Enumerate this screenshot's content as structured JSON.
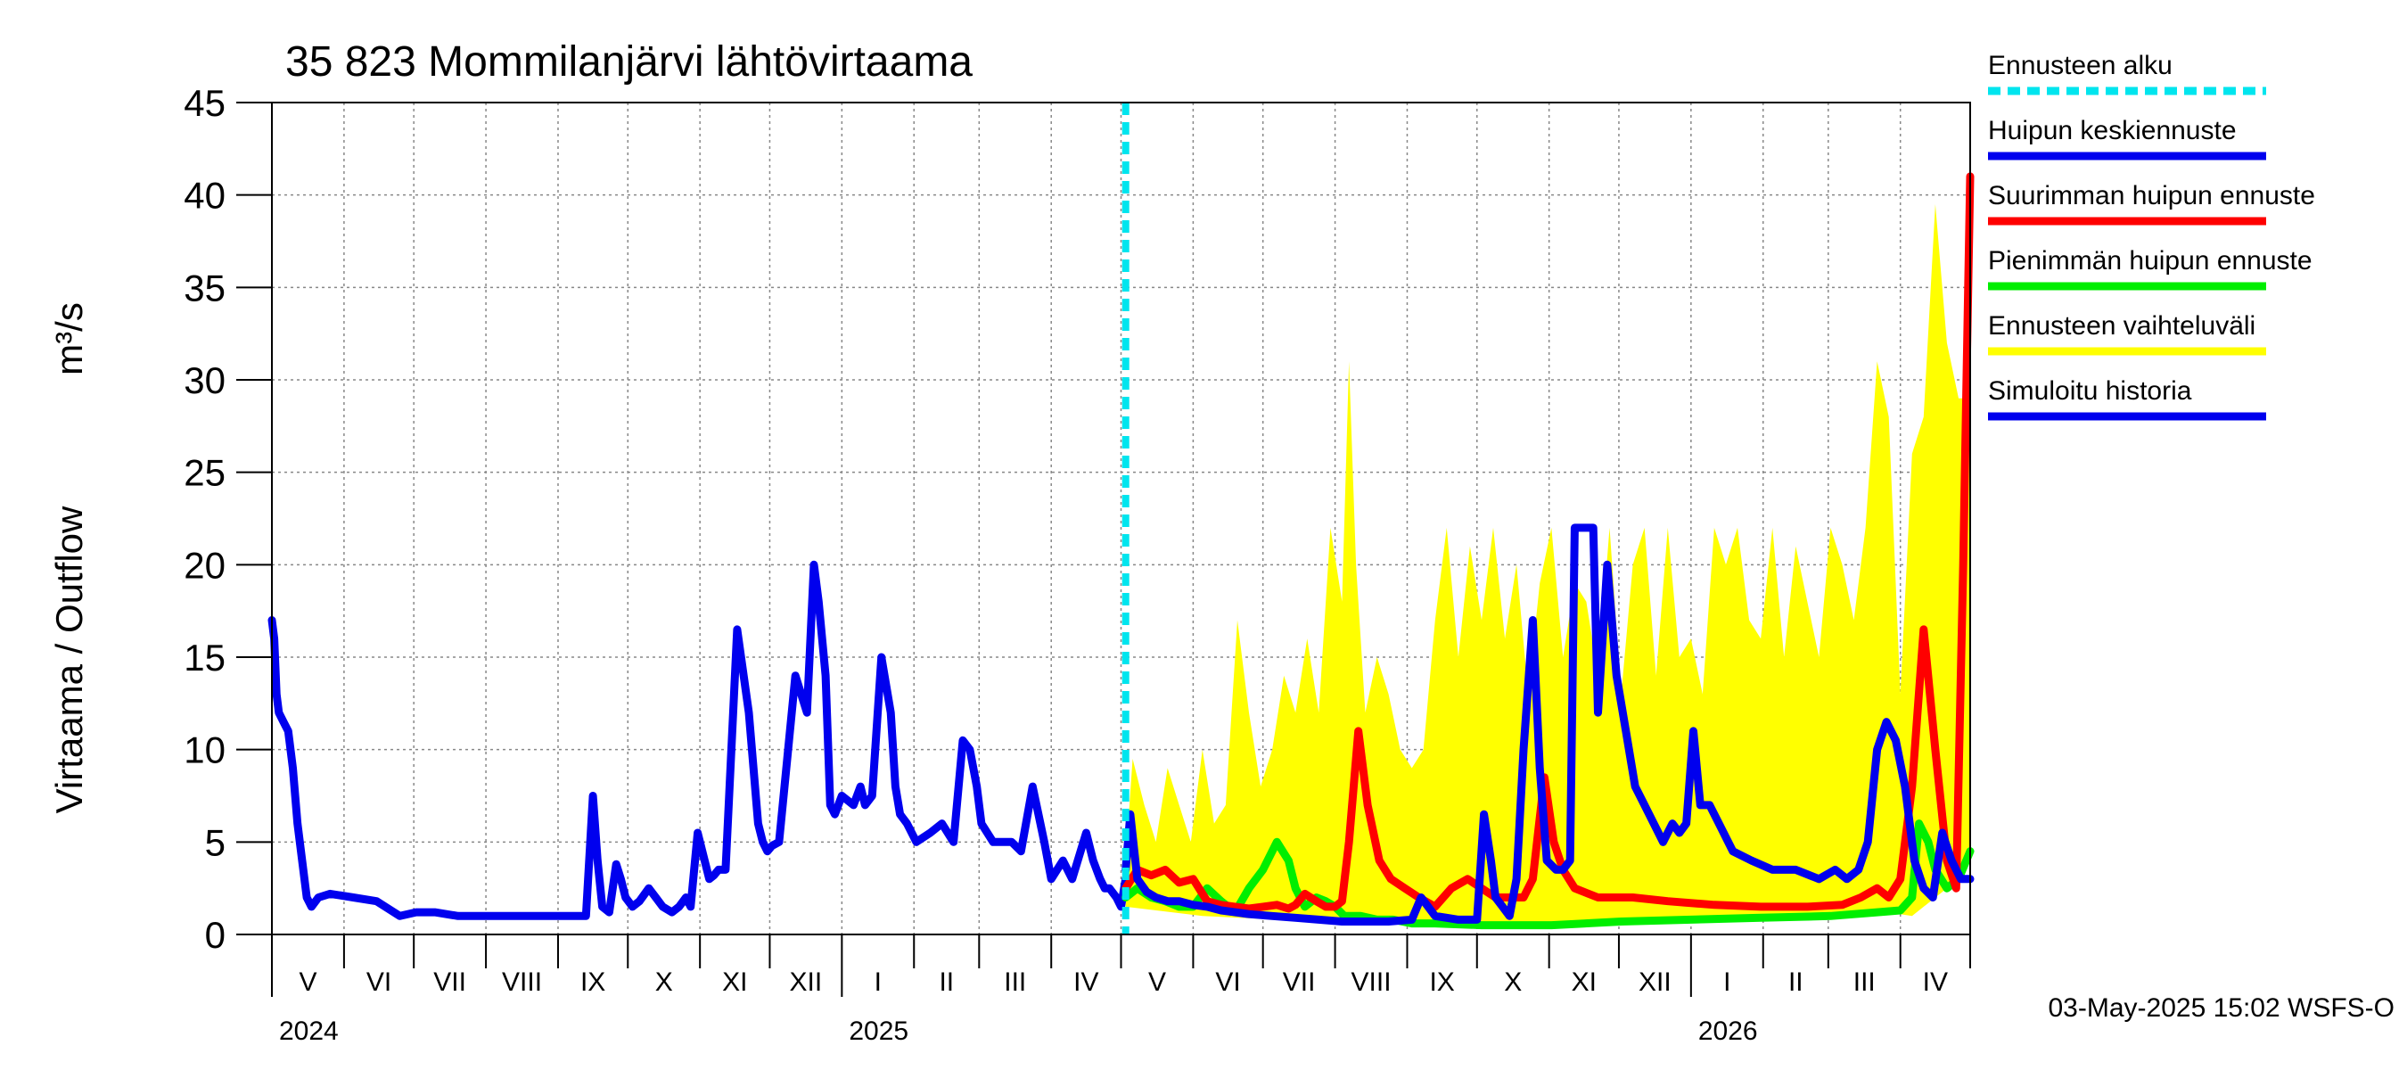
{
  "chart_data": {
    "type": "line",
    "title": "35 823 Mommilanjärvi lähtövirtaama",
    "ylabel_fi": "Virtaama / Outflow",
    "ylabel_unit": "m³/s",
    "ylim": [
      0,
      45
    ],
    "yticks": [
      0,
      5,
      10,
      15,
      20,
      25,
      30,
      35,
      40,
      45
    ],
    "ytick_labels": [
      "0",
      "5",
      "10",
      "15",
      "20",
      "25",
      "30",
      "35",
      "40",
      "45"
    ],
    "x_range_days": [
      0,
      730
    ],
    "months": [
      {
        "label": "V",
        "start": 0,
        "end": 31
      },
      {
        "label": "VI",
        "start": 31,
        "end": 61
      },
      {
        "label": "VII",
        "start": 61,
        "end": 92
      },
      {
        "label": "VIII",
        "start": 92,
        "end": 123
      },
      {
        "label": "IX",
        "start": 123,
        "end": 153
      },
      {
        "label": "X",
        "start": 153,
        "end": 184
      },
      {
        "label": "XI",
        "start": 184,
        "end": 214
      },
      {
        "label": "XII",
        "start": 214,
        "end": 245
      },
      {
        "label": "I",
        "start": 245,
        "end": 276
      },
      {
        "label": "II",
        "start": 276,
        "end": 304
      },
      {
        "label": "III",
        "start": 304,
        "end": 335
      },
      {
        "label": "IV",
        "start": 335,
        "end": 365
      },
      {
        "label": "V",
        "start": 365,
        "end": 396
      },
      {
        "label": "VI",
        "start": 396,
        "end": 426
      },
      {
        "label": "VII",
        "start": 426,
        "end": 457
      },
      {
        "label": "VIII",
        "start": 457,
        "end": 488
      },
      {
        "label": "IX",
        "start": 488,
        "end": 518
      },
      {
        "label": "X",
        "start": 518,
        "end": 549
      },
      {
        "label": "XI",
        "start": 549,
        "end": 579
      },
      {
        "label": "XII",
        "start": 579,
        "end": 610
      },
      {
        "label": "I",
        "start": 610,
        "end": 641
      },
      {
        "label": "II",
        "start": 641,
        "end": 669
      },
      {
        "label": "III",
        "start": 669,
        "end": 700
      },
      {
        "label": "IV",
        "start": 700,
        "end": 730
      }
    ],
    "years": [
      {
        "label": "2024",
        "day": 0
      },
      {
        "label": "2025",
        "day": 245
      },
      {
        "label": "2026",
        "day": 610
      }
    ],
    "forecast_start_day": 367,
    "legend": [
      {
        "label": "Ennusteen alku",
        "color": "#00e5ee",
        "style": "dashed"
      },
      {
        "label": "Huipun keskiennuste",
        "color": "#0000ee",
        "style": "solid"
      },
      {
        "label": "Suurimman huipun ennuste",
        "color": "#ff0000",
        "style": "solid"
      },
      {
        "label": "Pienimmän huipun ennuste",
        "color": "#00ee00",
        "style": "solid"
      },
      {
        "label": "Ennusteen vaihteluväli",
        "color": "#ffff00",
        "style": "solid"
      },
      {
        "label": "Simuloitu historia",
        "color": "#0000ee",
        "style": "solid"
      }
    ],
    "footer": "03-May-2025 15:02 WSFS-O",
    "series": [
      {
        "name": "Simuloitu historia",
        "color": "#0000ee",
        "x": [
          0,
          1,
          2,
          3,
          5,
          7,
          9,
          11,
          13,
          15,
          17,
          20,
          25,
          35,
          45,
          55,
          62,
          70,
          80,
          95,
          110,
          125,
          135,
          138,
          140,
          142,
          145,
          148,
          150,
          152,
          155,
          158,
          162,
          165,
          168,
          172,
          175,
          178,
          180,
          183,
          186,
          188,
          190,
          192,
          195,
          200,
          205,
          207,
          209,
          211,
          213,
          215,
          218,
          225,
          230,
          233,
          235,
          238,
          240,
          242,
          245,
          250,
          253,
          255,
          258,
          262,
          266,
          268,
          270,
          273,
          277,
          283,
          288,
          293,
          297,
          300,
          303,
          305,
          310,
          318,
          322,
          327,
          332,
          335,
          340,
          344,
          350,
          353,
          356,
          358,
          360,
          363,
          365,
          367
        ],
        "y": [
          17,
          16,
          13,
          12,
          11.5,
          11,
          9,
          6,
          4,
          2,
          1.5,
          2,
          2.2,
          2,
          1.8,
          1,
          1.2,
          1.2,
          1,
          1,
          1,
          1,
          1,
          7.5,
          4,
          1.5,
          1.2,
          3.8,
          3,
          2,
          1.5,
          1.8,
          2.5,
          2,
          1.5,
          1.2,
          1.5,
          2,
          1.5,
          5.5,
          4,
          3,
          3.2,
          3.5,
          3.5,
          16.5,
          12,
          9,
          6,
          5,
          4.5,
          4.8,
          5,
          14,
          12,
          20,
          18,
          14,
          7,
          6.5,
          7.5,
          7,
          8,
          7,
          7.5,
          15,
          12,
          8,
          6.5,
          6,
          5,
          5.5,
          6,
          5,
          10.5,
          10,
          8,
          6,
          5,
          5,
          4.5,
          8,
          5,
          3,
          4,
          3,
          5.5,
          4,
          3,
          2.5,
          2.5,
          2,
          1.5,
          3
        ]
      },
      {
        "name": "Ennusteen vaihteluväli (yläraja)",
        "color": "#ffff00",
        "x": [
          367,
          370,
          375,
          380,
          385,
          390,
          395,
          400,
          405,
          410,
          415,
          420,
          425,
          430,
          435,
          440,
          445,
          450,
          455,
          460,
          463,
          466,
          470,
          475,
          480,
          485,
          490,
          495,
          500,
          505,
          510,
          515,
          520,
          525,
          530,
          535,
          540,
          545,
          550,
          555,
          560,
          565,
          570,
          575,
          580,
          585,
          590,
          595,
          600,
          605,
          610,
          615,
          620,
          625,
          630,
          635,
          640,
          645,
          650,
          655,
          660,
          665,
          670,
          675,
          680,
          685,
          690,
          695,
          700,
          705,
          710,
          715,
          720,
          725,
          730
        ],
        "y": [
          4,
          9.5,
          7,
          5,
          9,
          7,
          5,
          10,
          6,
          7,
          17,
          12,
          8,
          10,
          14,
          12,
          16,
          12,
          22,
          18,
          31,
          20,
          12,
          15,
          13,
          10,
          9,
          10,
          17,
          22,
          15,
          21,
          17,
          22,
          16,
          20,
          13,
          19,
          22,
          15,
          19,
          18,
          14,
          22,
          13,
          20,
          22,
          14,
          22,
          15,
          16,
          13,
          22,
          20,
          22,
          17,
          16,
          22,
          15,
          21,
          18,
          15,
          22,
          20,
          17,
          22,
          31,
          28,
          13,
          26,
          28,
          39.5,
          32,
          29,
          29
        ]
      },
      {
        "name": "Ennusteen vaihteluväli (alaraja)",
        "color": "#ffff00",
        "x": [
          367,
          400,
          450,
          500,
          550,
          600,
          650,
          700,
          705,
          710,
          715,
          720,
          725,
          730
        ],
        "y": [
          1.5,
          1,
          0.7,
          0.5,
          0.5,
          0.6,
          0.9,
          1.1,
          1,
          1.5,
          2,
          2.5,
          3,
          4.5
        ]
      },
      {
        "name": "Suurimman huipun ennuste",
        "color": "#ff0000",
        "x": [
          367,
          372,
          378,
          384,
          390,
          396,
          402,
          408,
          414,
          420,
          426,
          432,
          437,
          440,
          444,
          449,
          453,
          457,
          460,
          463,
          467,
          471,
          476,
          481,
          487,
          493,
          500,
          507,
          514,
          520,
          526,
          532,
          538,
          542,
          547,
          551,
          555,
          560,
          570,
          585,
          600,
          620,
          640,
          660,
          675,
          683,
          690,
          695,
          700,
          705,
          710,
          715,
          720,
          724,
          727,
          730
        ],
        "y": [
          2.5,
          3.5,
          3.2,
          3.5,
          2.8,
          3,
          1.8,
          1.6,
          1.5,
          1.4,
          1.5,
          1.6,
          1.4,
          1.6,
          2.2,
          1.8,
          1.5,
          1.5,
          1.8,
          5,
          11,
          7,
          4,
          3,
          2.5,
          2,
          1.5,
          2.5,
          3,
          2.5,
          2,
          2,
          2,
          3,
          8.5,
          5,
          3.5,
          2.5,
          2,
          2,
          1.8,
          1.6,
          1.5,
          1.5,
          1.6,
          2,
          2.5,
          2,
          3,
          8,
          16.5,
          10,
          4,
          2.5,
          20,
          41
        ]
      },
      {
        "name": "Pienimmän huipun ennuste",
        "color": "#00ee00",
        "x": [
          367,
          372,
          378,
          384,
          390,
          396,
          402,
          408,
          414,
          420,
          426,
          432,
          437,
          440,
          444,
          449,
          453,
          457,
          461,
          468,
          475,
          482,
          490,
          500,
          520,
          550,
          580,
          610,
          640,
          670,
          690,
          700,
          705,
          708,
          712,
          715,
          720,
          725,
          730
        ],
        "y": [
          2,
          2.5,
          2,
          1.8,
          1.5,
          1.5,
          2.5,
          1.8,
          1.2,
          2.5,
          3.5,
          5,
          4,
          2.5,
          1.5,
          2,
          1.8,
          1.5,
          1,
          1,
          0.8,
          0.8,
          0.6,
          0.6,
          0.5,
          0.5,
          0.7,
          0.8,
          0.9,
          1,
          1.2,
          1.3,
          2,
          6,
          5,
          3.5,
          2.5,
          3,
          4.5
        ]
      },
      {
        "name": "Huipun keskiennuste",
        "color": "#0000ee",
        "x": [
          367,
          369,
          372,
          376,
          380,
          385,
          390,
          396,
          402,
          408,
          414,
          420,
          430,
          440,
          450,
          460,
          470,
          480,
          490,
          494,
          497,
          500,
          505,
          510,
          515,
          518,
          521,
          524,
          526,
          529,
          532,
          535,
          538,
          542,
          545,
          548,
          552,
          555,
          558,
          560,
          563,
          565,
          568,
          570,
          574,
          578,
          582,
          586,
          590,
          594,
          598,
          602,
          605,
          608,
          611,
          614,
          618,
          622,
          628,
          636,
          645,
          655,
          665,
          672,
          677,
          682,
          686,
          690,
          694,
          698,
          702,
          706,
          710,
          714,
          718,
          722,
          726,
          730
        ],
        "y": [
          3.5,
          6.5,
          3,
          2.3,
          2,
          1.8,
          1.8,
          1.6,
          1.5,
          1.3,
          1.2,
          1.1,
          1,
          0.9,
          0.8,
          0.7,
          0.7,
          0.7,
          0.8,
          2,
          1.5,
          1,
          0.9,
          0.8,
          0.8,
          0.8,
          6.5,
          4,
          2,
          1.5,
          1,
          3,
          10,
          17,
          9,
          4,
          3.5,
          3.5,
          4,
          22,
          22,
          22,
          22,
          12,
          20,
          14,
          11,
          8,
          7,
          6,
          5,
          6,
          5.5,
          6,
          11,
          7,
          7,
          6,
          4.5,
          4,
          3.5,
          3.5,
          3,
          3.5,
          3,
          3.5,
          5,
          10,
          11.5,
          10.5,
          8,
          4,
          2.5,
          2,
          5.5,
          4,
          3,
          3
        ]
      }
    ]
  }
}
